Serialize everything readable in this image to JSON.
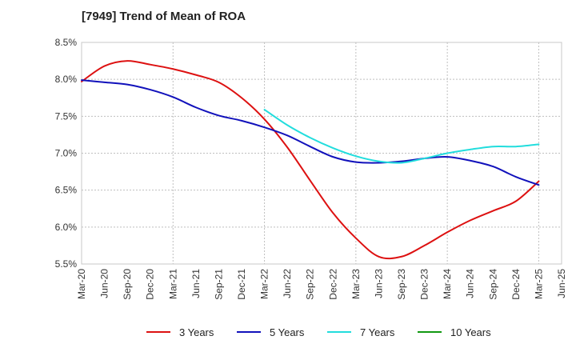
{
  "chart_data": {
    "type": "line",
    "title": "[7949]  Trend of Mean of ROA",
    "xlabel": "",
    "ylabel": "",
    "x": [
      "Mar-20",
      "Jun-20",
      "Sep-20",
      "Dec-20",
      "Mar-21",
      "Jun-21",
      "Sep-21",
      "Dec-21",
      "Mar-22",
      "Jun-22",
      "Sep-22",
      "Dec-22",
      "Mar-23",
      "Jun-23",
      "Sep-23",
      "Dec-23",
      "Mar-24",
      "Jun-24",
      "Sep-24",
      "Dec-24",
      "Mar-25",
      "Jun-25"
    ],
    "ylim": [
      5.5,
      8.5
    ],
    "yticks": [
      5.5,
      6.0,
      6.5,
      7.0,
      7.5,
      8.0,
      8.5
    ],
    "ytick_labels": [
      "5.5%",
      "6.0%",
      "6.5%",
      "7.0%",
      "7.5%",
      "8.0%",
      "8.5%"
    ],
    "grid": true,
    "legend_position": "bottom",
    "series": [
      {
        "name": "3 Years",
        "color": "#dd1111",
        "values": [
          7.97,
          8.18,
          8.25,
          8.2,
          8.14,
          8.06,
          7.96,
          7.75,
          7.46,
          7.08,
          6.63,
          6.19,
          5.85,
          5.6,
          5.6,
          5.75,
          5.93,
          6.09,
          6.22,
          6.35,
          6.62,
          null
        ]
      },
      {
        "name": "5 Years",
        "color": "#1111bb",
        "values": [
          7.99,
          7.96,
          7.93,
          7.86,
          7.76,
          7.62,
          7.51,
          7.44,
          7.35,
          7.24,
          7.09,
          6.95,
          6.88,
          6.87,
          6.89,
          6.93,
          6.95,
          6.9,
          6.82,
          6.68,
          6.57,
          null
        ]
      },
      {
        "name": "7 Years",
        "color": "#22dddd",
        "values": [
          null,
          null,
          null,
          null,
          null,
          null,
          null,
          null,
          7.59,
          7.38,
          7.21,
          7.07,
          6.96,
          6.89,
          6.87,
          6.93,
          7.0,
          7.05,
          7.09,
          7.09,
          7.12,
          null
        ]
      },
      {
        "name": "10 Years",
        "color": "#119911",
        "values": [
          null,
          null,
          null,
          null,
          null,
          null,
          null,
          null,
          null,
          null,
          null,
          null,
          null,
          null,
          null,
          null,
          null,
          null,
          null,
          null,
          null,
          null
        ]
      }
    ]
  }
}
